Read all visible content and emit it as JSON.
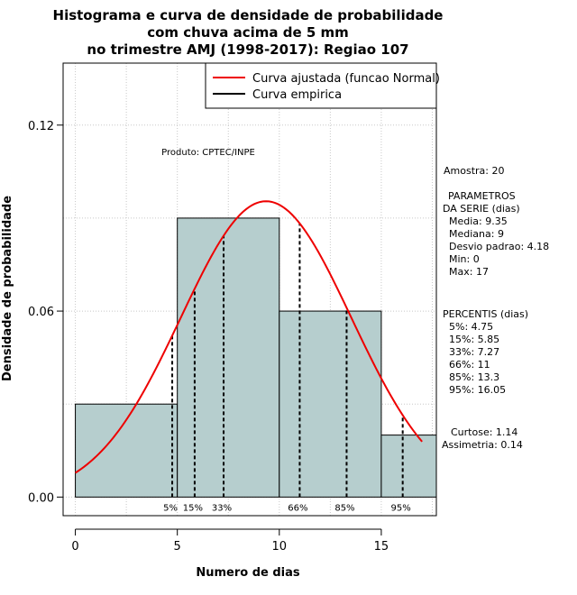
{
  "chart_data": {
    "type": "histogram",
    "title": [
      "Histograma e curva de densidade de probabilidade",
      "com chuva acima de 5 mm",
      "no trimestre AMJ (1998-2017): Regiao 107"
    ],
    "xlabel": "Numero de dias",
    "ylabel": "Densidade de probabilidade",
    "xlim": [
      -0.6,
      17.7
    ],
    "ylim": [
      -0.006,
      0.14
    ],
    "xticks": [
      0,
      5,
      10,
      15
    ],
    "yticks": [
      0.0,
      0.06,
      0.12
    ],
    "ytick_labels": [
      "0.00",
      "0.06",
      "0.12"
    ],
    "grid": true,
    "bars": [
      {
        "x0": 0,
        "x1": 5,
        "density": 0.03
      },
      {
        "x0": 5,
        "x1": 10,
        "density": 0.09
      },
      {
        "x0": 10,
        "x1": 15,
        "density": 0.06
      },
      {
        "x0": 15,
        "x1": 17.7,
        "density": 0.02
      }
    ],
    "bar_color": "#b6cece",
    "curve_color": "#ee0000",
    "normal_fit": {
      "mean": 9.35,
      "sd": 4.18,
      "x_from": 0,
      "x_to": 17
    },
    "percentiles": [
      {
        "label": "5%",
        "value": 4.75
      },
      {
        "label": "15%",
        "value": 5.85
      },
      {
        "label": "33%",
        "value": 7.27
      },
      {
        "label": "66%",
        "value": 11
      },
      {
        "label": "85%",
        "value": 13.3
      },
      {
        "label": "95%",
        "value": 16.05
      }
    ],
    "legend": {
      "position": "top-right",
      "items": [
        {
          "label": "Curva ajustada (funcao Normal)",
          "color": "#ee0000"
        },
        {
          "label": "Curva empirica",
          "color": "#000000"
        }
      ]
    },
    "annotation": "Produto: CPTEC/INPE",
    "side_panel": {
      "amostra": "Amostra: 20",
      "parametros": [
        "PARAMETROS",
        "DA SERIE (dias)",
        "Media: 9.35",
        "Mediana: 9",
        "Desvio padrao: 4.18",
        "Min: 0",
        "Max: 17"
      ],
      "percentis": [
        "PERCENTIS (dias)",
        "5%: 4.75",
        "15%: 5.85",
        "33%: 7.27",
        "66%: 11",
        "85%: 13.3",
        "95%: 16.05"
      ],
      "shape": [
        "Curtose: 1.14",
        "Assimetria: 0.14"
      ]
    }
  }
}
